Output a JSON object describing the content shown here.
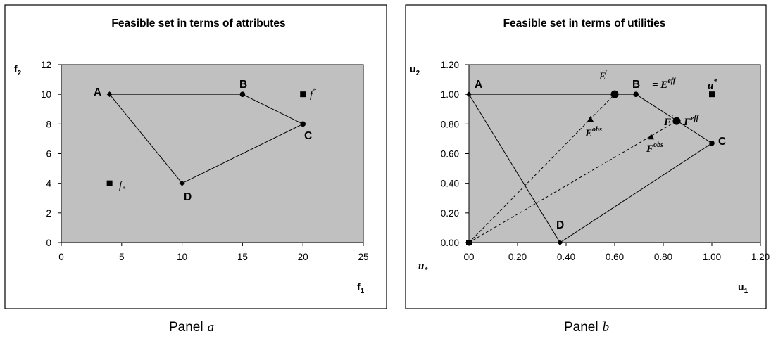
{
  "chart_data": [
    {
      "type": "scatter",
      "title": "Feasible set in terms of attributes",
      "xlabel": "f",
      "xlabel_sub": "1",
      "ylabel": "f",
      "ylabel_sub": "2",
      "xlim": [
        0,
        25
      ],
      "ylim": [
        0,
        12
      ],
      "xticks": [
        0,
        5,
        10,
        15,
        20,
        25
      ],
      "yticks": [
        0,
        2,
        4,
        6,
        8,
        10,
        12
      ],
      "xtick_labels": [
        "0",
        "5",
        "10",
        "15",
        "20",
        "25"
      ],
      "ytick_labels": [
        "0",
        "2",
        "4",
        "6",
        "8",
        "10",
        "12"
      ],
      "polygon": [
        {
          "label": "A",
          "x": 4,
          "y": 10,
          "marker": "diamond"
        },
        {
          "label": "B",
          "x": 15,
          "y": 10,
          "marker": "circle"
        },
        {
          "label": "C",
          "x": 20,
          "y": 8,
          "marker": "circle"
        },
        {
          "label": "D",
          "x": 10,
          "y": 4,
          "marker": "diamond"
        }
      ],
      "special_points": [
        {
          "name": "f",
          "sup": "*",
          "x": 20,
          "y": 10,
          "marker": "square"
        },
        {
          "name": "f",
          "sub": "*",
          "x": 4,
          "y": 4,
          "marker": "square"
        }
      ],
      "plot_background": "#c0c0c0",
      "caption": "Panel",
      "caption_var": "a"
    },
    {
      "type": "scatter",
      "title": "Feasible set in terms of utilities",
      "xlabel": "u",
      "xlabel_sub": "1",
      "ylabel": "u",
      "ylabel_sub": "2",
      "xlim": [
        0,
        1.2
      ],
      "ylim": [
        0,
        1.2
      ],
      "xticks": [
        0,
        0.2,
        0.4,
        0.6,
        0.8,
        1.0,
        1.2
      ],
      "yticks": [
        0,
        0.2,
        0.4,
        0.6,
        0.8,
        1.0,
        1.2
      ],
      "xtick_labels": [
        "00",
        "0.20",
        "0.40",
        "0.60",
        "0.80",
        "1.00",
        "1.20"
      ],
      "ytick_labels": [
        "0.00",
        "0.20",
        "0.40",
        "0.60",
        "0.80",
        "1.00",
        "1.20"
      ],
      "polygon": [
        {
          "label": "A",
          "x": 0,
          "y": 1.0,
          "marker": "diamond"
        },
        {
          "label": "B",
          "x": 0.6875,
          "y": 1.0,
          "marker": "circle"
        },
        {
          "label": "C",
          "x": 1.0,
          "y": 0.67,
          "marker": "circle"
        },
        {
          "label": "D",
          "x": 0.375,
          "y": 0,
          "marker": "diamond"
        }
      ],
      "special_points": [
        {
          "name": "u",
          "sup": "*",
          "x": 1.0,
          "y": 1.0,
          "marker": "square"
        },
        {
          "name": "u",
          "sub": "*",
          "x": 0,
          "y": 0,
          "marker": "square"
        },
        {
          "name": "E",
          "sup": "'",
          "x": 0.6,
          "y": 1.0,
          "marker": "big-circle"
        },
        {
          "name": "F",
          "sup": "'",
          "x": 0.855,
          "y": 0.82,
          "marker": "big-circle"
        },
        {
          "name": "E",
          "sup": "obs",
          "x": 0.5,
          "y": 0.83,
          "marker": "triangle"
        },
        {
          "name": "F",
          "sup": "obs",
          "x": 0.75,
          "y": 0.71,
          "marker": "triangle"
        }
      ],
      "rays": [
        {
          "from": [
            0,
            0
          ],
          "to": [
            0.6,
            1.0
          ],
          "style": "dashed"
        },
        {
          "from": [
            0,
            0
          ],
          "to": [
            0.855,
            0.82
          ],
          "style": "dashed"
        }
      ],
      "annotations": [
        {
          "text": "= E",
          "sup": "eff",
          "near": "B"
        },
        {
          "text": "F",
          "sup": "'",
          "text2": "= F",
          "sup2": "eff",
          "near": "C"
        }
      ],
      "plot_background": "#c0c0c0",
      "caption": "Panel",
      "caption_var": "b"
    }
  ]
}
